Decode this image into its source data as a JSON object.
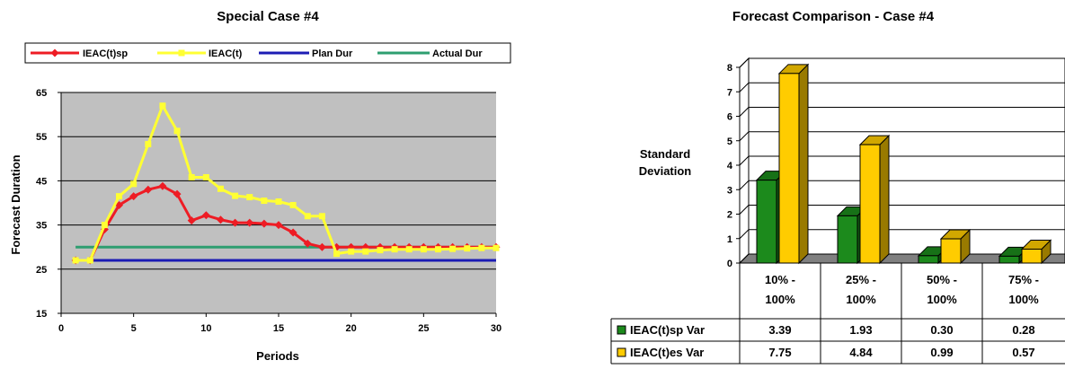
{
  "chart_data": [
    {
      "type": "line",
      "title": "Special Case #4",
      "xlabel": "Periods",
      "ylabel": "Forecast Duration",
      "xlim": [
        0,
        30
      ],
      "ylim": [
        15,
        65
      ],
      "xticks": [
        "0",
        "5",
        "10",
        "15",
        "20",
        "25",
        "30"
      ],
      "yticks": [
        "15",
        "25",
        "35",
        "45",
        "55",
        "65"
      ],
      "grid": true,
      "plot_background": "#c0c0c0",
      "legend_position": "top",
      "series": [
        {
          "name": "IEAC(t)sp",
          "color": "#ee1c24",
          "marker": "diamond",
          "x": [
            1,
            2,
            3,
            4,
            5,
            6,
            7,
            8,
            9,
            10,
            11,
            12,
            13,
            14,
            15,
            16,
            17,
            18,
            19,
            20,
            21,
            22,
            23,
            24,
            25,
            26,
            27,
            28,
            29,
            30
          ],
          "y": [
            27,
            27,
            34,
            39.5,
            41.5,
            43,
            43.8,
            42,
            36,
            37.2,
            36.2,
            35.5,
            35.5,
            35.3,
            35,
            33.3,
            30.8,
            30,
            30,
            30,
            30,
            30,
            30,
            30,
            30,
            30,
            30,
            30,
            30,
            30
          ]
        },
        {
          "name": "IEAC(t)",
          "color": "#ffff33",
          "marker": "square",
          "x": [
            1,
            2,
            3,
            4,
            5,
            6,
            7,
            8,
            9,
            10,
            11,
            12,
            13,
            14,
            15,
            16,
            17,
            18,
            19,
            20,
            21,
            22,
            23,
            24,
            25,
            26,
            27,
            28,
            29,
            30
          ],
          "y": [
            27,
            27,
            35,
            41.5,
            44.3,
            53.3,
            62,
            56.3,
            45.8,
            45.8,
            43.2,
            41.6,
            41.3,
            40.5,
            40.3,
            39.5,
            37,
            37,
            28.5,
            29,
            29,
            29.3,
            29.5,
            29.5,
            29.5,
            29.5,
            29.6,
            29.7,
            29.8,
            29.8
          ]
        },
        {
          "name": "Plan Dur",
          "color": "#1c1cb4",
          "x": [
            1,
            30
          ],
          "y": [
            27,
            27
          ]
        },
        {
          "name": "Actual Dur",
          "color": "#2e9e70",
          "x": [
            1,
            30
          ],
          "y": [
            30,
            30
          ]
        }
      ]
    },
    {
      "type": "bar",
      "title": "Forecast Comparison - Case #4",
      "ylabel": "Standard Deviation",
      "ylim": [
        0,
        8
      ],
      "yticks": [
        "0",
        "1",
        "2",
        "3",
        "4",
        "5",
        "6",
        "7",
        "8"
      ],
      "grid": true,
      "categories": [
        [
          "10% -",
          "100%"
        ],
        [
          "25% -",
          "100%"
        ],
        [
          "50% -",
          "100%"
        ],
        [
          "75% -",
          "100%"
        ]
      ],
      "series": [
        {
          "name": "IEAC(t)sp Var",
          "color": "#1c8a1c",
          "values": [
            3.39,
            1.93,
            0.3,
            0.28
          ],
          "labels": [
            "3.39",
            "1.93",
            "0.30",
            "0.28"
          ]
        },
        {
          "name": "IEAC(t)es Var",
          "color": "#ffcc00",
          "values": [
            7.75,
            4.84,
            0.99,
            0.57
          ],
          "labels": [
            "7.75",
            "4.84",
            "0.99",
            "0.57"
          ]
        }
      ],
      "data_table": true
    }
  ]
}
